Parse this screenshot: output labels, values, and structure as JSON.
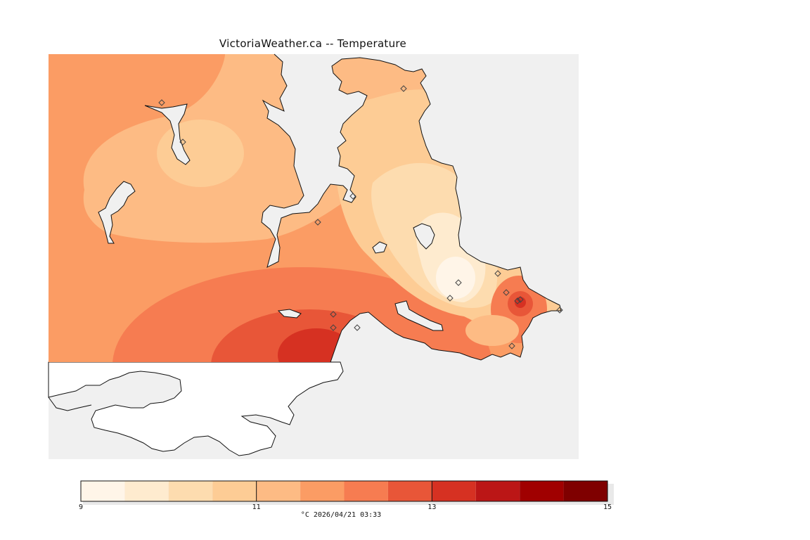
{
  "map": {
    "title": "VictoriaWeather.ca -- Temperature",
    "variable": "Temperature",
    "unit": "°C",
    "timestamp": "2026/04/21 03:33",
    "caption": "°C  2026/04/21 03:33"
  },
  "legend": {
    "min": 9,
    "max": 15,
    "tick_labels": [
      "9",
      "11",
      "13",
      "15"
    ],
    "tick_values": [
      9,
      11,
      13,
      15
    ],
    "color_stops": [
      {
        "from": 9.0,
        "to": 9.5,
        "color": "#fff5e8"
      },
      {
        "from": 9.5,
        "to": 10.0,
        "color": "#feebcf"
      },
      {
        "from": 10.0,
        "to": 10.5,
        "color": "#fddcaf"
      },
      {
        "from": 10.5,
        "to": 11.0,
        "color": "#fdcc95"
      },
      {
        "from": 11.0,
        "to": 11.5,
        "color": "#fdbb84"
      },
      {
        "from": 11.5,
        "to": 12.0,
        "color": "#fb9c64"
      },
      {
        "from": 12.0,
        "to": 12.5,
        "color": "#f67c51"
      },
      {
        "from": 12.5,
        "to": 13.0,
        "color": "#e85638"
      },
      {
        "from": 13.0,
        "to": 13.5,
        "color": "#d63122"
      },
      {
        "from": 13.5,
        "to": 14.0,
        "color": "#bb1616"
      },
      {
        "from": 14.0,
        "to": 14.5,
        "color": "#a00000"
      },
      {
        "from": 14.5,
        "to": 15.0,
        "color": "#7f0000"
      }
    ]
  },
  "colors": {
    "water": "#f0f0f0",
    "outside_land": "#ffffff",
    "station_marker": "#444444"
  },
  "stations": [
    {
      "id": "s1"
    },
    {
      "id": "s2"
    },
    {
      "id": "s3"
    },
    {
      "id": "s4"
    },
    {
      "id": "s5"
    },
    {
      "id": "s6"
    },
    {
      "id": "s7"
    },
    {
      "id": "s8"
    },
    {
      "id": "s9"
    },
    {
      "id": "s10"
    },
    {
      "id": "s11"
    },
    {
      "id": "s12"
    },
    {
      "id": "s13"
    },
    {
      "id": "s14"
    },
    {
      "id": "s15"
    },
    {
      "id": "s16"
    }
  ]
}
